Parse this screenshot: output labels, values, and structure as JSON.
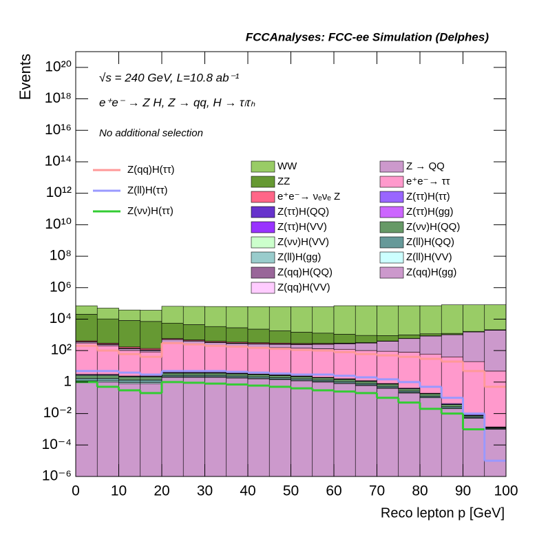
{
  "chart_data": {
    "type": "stacked_histogram",
    "title": "FCCAnalyses: FCC-ee Simulation (Delphes)",
    "annotations": [
      "√s = 240 GeV, L=10.8 ab⁻¹",
      "e⁺e⁻ → Z H, Z → qq, H → τₗτₕ",
      "No additional selection"
    ],
    "xlabel": "Reco lepton p [GeV]",
    "ylabel": "Events",
    "log_y": true,
    "xlim": [
      0,
      100
    ],
    "ylim": [
      1e-06,
      1e+21
    ],
    "xticks": [
      0,
      10,
      20,
      30,
      40,
      50,
      60,
      70,
      80,
      90,
      100
    ],
    "yticks": [
      {
        "value": 1e-06,
        "label": "10⁻⁶"
      },
      {
        "value": 0.0001,
        "label": "10⁻⁴"
      },
      {
        "value": 0.01,
        "label": "10⁻²"
      },
      1,
      {
        "value": 100,
        "label": "10²"
      },
      {
        "value": 10000,
        "label": "10⁴"
      },
      {
        "value": 1000000,
        "label": "10⁶"
      },
      {
        "value": 100000000.0,
        "label": "10⁸"
      },
      {
        "value": 10000000000.0,
        "label": "10¹⁰"
      },
      {
        "value": 1000000000000.0,
        "label": "10¹²"
      },
      {
        "value": 100000000000000.0,
        "label": "10¹⁴"
      },
      {
        "value": 1e+16,
        "label": "10¹⁶"
      },
      {
        "value": 1e+18,
        "label": "10¹⁸"
      },
      {
        "value": 1e+20,
        "label": "10²⁰"
      }
    ],
    "bins": [
      0,
      5,
      10,
      15,
      20,
      25,
      30,
      35,
      40,
      45,
      50,
      55,
      60,
      65,
      70,
      75,
      80,
      85,
      90,
      95,
      100
    ],
    "series": [
      {
        "name": "WW",
        "color": "#99cc66",
        "values": [
          50000,
          40000,
          30000,
          30000,
          60000,
          60000,
          60000,
          60000,
          60000,
          60000,
          60000,
          60000,
          70000,
          70000,
          70000,
          70000,
          70000,
          80000,
          80000,
          80000
        ]
      },
      {
        "name": "ZZ",
        "color": "#669933",
        "values": [
          20000,
          10000,
          8000,
          7000,
          5000,
          4000,
          3000,
          2500,
          2000,
          1500,
          1200,
          1000,
          800,
          600,
          500,
          400,
          300,
          200,
          150,
          100
        ]
      },
      {
        "name": "e⁺e⁻→ νₑνₑ Z",
        "color": "#ff6688",
        "values": [
          50,
          40,
          30,
          25,
          60,
          55,
          50,
          45,
          40,
          35,
          30,
          25,
          20,
          15,
          12,
          10,
          8,
          6,
          4,
          2
        ]
      },
      {
        "name": "Z(ττ)H(QQ)",
        "color": "#6633cc",
        "values": [
          3,
          3,
          2,
          2,
          2,
          2,
          2,
          2,
          2,
          2,
          1.5,
          1.5,
          1.2,
          1,
          1,
          0.8,
          0.5,
          0.3,
          0.1,
          0.01
        ]
      },
      {
        "name": "Z(ττ)H(VV)",
        "color": "#9933ff",
        "values": [
          1,
          1,
          0.8,
          0.8,
          0.8,
          0.8,
          0.8,
          0.7,
          0.7,
          0.6,
          0.5,
          0.5,
          0.4,
          0.3,
          0.3,
          0.2,
          0.1,
          0.05,
          0.01,
          0.001
        ]
      },
      {
        "name": "Z(νν)H(VV)",
        "color": "#ccffcc",
        "values": [
          2,
          2,
          1.5,
          1.5,
          2,
          2,
          2,
          1.8,
          1.6,
          1.5,
          1.3,
          1.2,
          1,
          0.8,
          0.6,
          0.4,
          0.2,
          0.1,
          0.02,
          0.005
        ]
      },
      {
        "name": "Z(ll)H(gg)",
        "color": "#99cccc",
        "values": [
          0.5,
          0.4,
          0.3,
          0.3,
          0.5,
          0.5,
          0.5,
          0.4,
          0.4,
          0.3,
          0.3,
          0.2,
          0.2,
          0.1,
          0.1,
          0.05,
          0.02,
          0.01,
          0.001,
          0.0001
        ]
      },
      {
        "name": "Z(qq)H(QQ)",
        "color": "#996699",
        "values": [
          5,
          4,
          3,
          3,
          10,
          10,
          9,
          8,
          8,
          7,
          6,
          5,
          4,
          3,
          2,
          1,
          0.5,
          0.1,
          0.01,
          0.001
        ]
      },
      {
        "name": "Z(qq)H(VV)",
        "color": "#ffccff",
        "values": [
          2,
          2,
          1.5,
          1.5,
          4,
          4,
          3.5,
          3,
          3,
          2.5,
          2,
          1.8,
          1.5,
          1,
          0.8,
          0.5,
          0.2,
          0.05,
          0.01,
          0.001
        ]
      },
      {
        "name": "Z → QQ",
        "color": "#cc99cc",
        "values": [
          50,
          40,
          30,
          20,
          200,
          150,
          120,
          100,
          100,
          100,
          100,
          120,
          150,
          200,
          300,
          500,
          800,
          1000,
          1500,
          2000
        ]
      },
      {
        "name": "e⁺e⁻→ ττ",
        "color": "#ff99cc",
        "values": [
          300,
          200,
          100,
          80,
          300,
          250,
          200,
          180,
          160,
          150,
          140,
          130,
          120,
          100,
          90,
          80,
          60,
          40,
          20,
          5
        ]
      },
      {
        "name": "Z(ττ)H(ττ)",
        "color": "#9966ff",
        "values": [
          0.3,
          0.3,
          0.2,
          0.2,
          0.3,
          0.3,
          0.3,
          0.25,
          0.2,
          0.2,
          0.15,
          0.1,
          0.1,
          0.08,
          0.05,
          0.03,
          0.01,
          0.005,
          0.001,
          0.0001
        ]
      },
      {
        "name": "Z(ττ)H(gg)",
        "color": "#cc66ff",
        "values": [
          0.1,
          0.1,
          0.08,
          0.08,
          0.1,
          0.1,
          0.1,
          0.09,
          0.08,
          0.07,
          0.06,
          0.05,
          0.04,
          0.03,
          0.02,
          0.01,
          0.005,
          0.001,
          0.0001,
          1e-05
        ]
      },
      {
        "name": "Z(νν)H(QQ)",
        "color": "#669966",
        "values": [
          1,
          1,
          0.8,
          0.8,
          1,
          1,
          1,
          0.9,
          0.8,
          0.7,
          0.6,
          0.5,
          0.4,
          0.3,
          0.2,
          0.1,
          0.05,
          0.01,
          0.001,
          0.0001
        ]
      },
      {
        "name": "Z(ll)H(QQ)",
        "color": "#669999",
        "values": [
          0.5,
          0.5,
          0.4,
          0.4,
          0.5,
          0.5,
          0.5,
          0.45,
          0.4,
          0.35,
          0.3,
          0.25,
          0.2,
          0.15,
          0.1,
          0.05,
          0.02,
          0.005,
          0.001,
          0.0001
        ]
      },
      {
        "name": "Z(ll)H(VV)",
        "color": "#ccffff",
        "values": [
          0.2,
          0.2,
          0.15,
          0.15,
          0.2,
          0.2,
          0.2,
          0.18,
          0.16,
          0.14,
          0.12,
          0.1,
          0.08,
          0.06,
          0.04,
          0.02,
          0.01,
          0.002,
          0.0005,
          0.0001
        ]
      },
      {
        "name": "Z(qq)H(gg)",
        "color": "#cc99cc",
        "values": [
          1,
          1,
          0.8,
          0.8,
          2,
          2,
          2,
          1.8,
          1.6,
          1.4,
          1.2,
          1,
          0.8,
          0.6,
          0.4,
          0.2,
          0.1,
          0.02,
          0.005,
          0.001
        ]
      }
    ],
    "signals": [
      {
        "name": "Z(qq)H(ττ)",
        "color": "#ff9999",
        "values": [
          200,
          100,
          60,
          40,
          300,
          250,
          200,
          180,
          150,
          130,
          110,
          100,
          80,
          60,
          50,
          40,
          30,
          20,
          5,
          0.5
        ]
      },
      {
        "name": "Z(ll)H(ττ)",
        "color": "#9999ff",
        "values": [
          5,
          5,
          4,
          3,
          5,
          5,
          5,
          4.5,
          4,
          3.5,
          3,
          3,
          2.5,
          2,
          1.5,
          1,
          0.5,
          0.1,
          0.01,
          1e-05
        ]
      },
      {
        "name": "Z(νν)H(ττ)",
        "color": "#33cc33",
        "values": [
          1,
          0.5,
          0.3,
          0.2,
          1,
          0.9,
          0.8,
          0.7,
          0.6,
          0.5,
          0.4,
          0.3,
          0.25,
          0.2,
          0.1,
          0.05,
          0.02,
          0.01,
          0.001,
          null
        ]
      }
    ]
  }
}
